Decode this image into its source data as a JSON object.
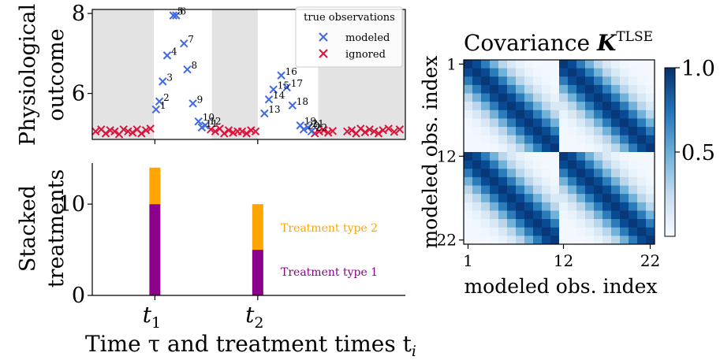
{
  "chart_data": [
    {
      "type": "scatter",
      "ylabel_line1": "Physiological",
      "ylabel_line2": "outcome",
      "ylim": [
        4.85,
        8.1
      ],
      "yticks": [
        6,
        8
      ],
      "ytick_labels": [
        "6",
        "8"
      ],
      "xlim": [
        0,
        28
      ],
      "shaded_regions": [
        [
          0,
          5.5
        ],
        [
          10.7,
          14.8
        ],
        [
          20.2,
          28
        ]
      ],
      "legend_title": "true observations",
      "legend": [
        {
          "label": "modeled",
          "color": "#4169e1"
        },
        {
          "label": "ignored",
          "color": "#dc143c"
        }
      ],
      "modeled_points": [
        {
          "label": "1",
          "x": 5.7,
          "y": 5.6
        },
        {
          "label": "2",
          "x": 6.0,
          "y": 5.8
        },
        {
          "label": "3",
          "x": 6.3,
          "y": 6.3
        },
        {
          "label": "4",
          "x": 6.7,
          "y": 6.95
        },
        {
          "label": "5",
          "x": 7.25,
          "y": 7.95
        },
        {
          "label": "6",
          "x": 7.5,
          "y": 7.95
        },
        {
          "label": "7",
          "x": 8.2,
          "y": 7.25
        },
        {
          "label": "8",
          "x": 8.5,
          "y": 6.6
        },
        {
          "label": "9",
          "x": 9.0,
          "y": 5.75
        },
        {
          "label": "10",
          "x": 9.5,
          "y": 5.3
        },
        {
          "label": "11",
          "x": 9.8,
          "y": 5.15
        },
        {
          "label": "12",
          "x": 10.1,
          "y": 5.2
        },
        {
          "label": "13",
          "x": 15.4,
          "y": 5.5
        },
        {
          "label": "14",
          "x": 15.8,
          "y": 5.85
        },
        {
          "label": "15",
          "x": 16.2,
          "y": 6.1
        },
        {
          "label": "16",
          "x": 16.9,
          "y": 6.45
        },
        {
          "label": "17",
          "x": 17.4,
          "y": 6.15
        },
        {
          "label": "18",
          "x": 17.9,
          "y": 5.7
        },
        {
          "label": "19",
          "x": 18.6,
          "y": 5.2
        },
        {
          "label": "20",
          "x": 18.9,
          "y": 5.1
        },
        {
          "label": "21",
          "x": 19.3,
          "y": 5.15
        },
        {
          "label": "22",
          "x": 19.6,
          "y": 5.05
        }
      ],
      "ignored_points_x": [
        0.3,
        0.8,
        1.2,
        1.6,
        2.0,
        2.4,
        2.8,
        3.2,
        3.6,
        4.0,
        4.4,
        4.8,
        5.2,
        10.6,
        11.0,
        11.4,
        11.8,
        12.2,
        12.6,
        13.0,
        13.4,
        13.8,
        14.2,
        14.6,
        19.9,
        20.3,
        20.7,
        21.1,
        21.5,
        22.8,
        23.2,
        23.6,
        24.0,
        24.4,
        24.8,
        25.2,
        25.6,
        26.0,
        26.5,
        27.0,
        27.5
      ],
      "ignored_points_y": [
        5.05,
        5.1,
        5.0,
        5.08,
        5.05,
        4.98,
        5.1,
        5.05,
        5.02,
        5.1,
        5.0,
        5.08,
        5.12,
        5.1,
        5.05,
        5.12,
        5.0,
        5.08,
        5.02,
        5.05,
        5.05,
        5.0,
        5.08,
        5.05,
        5.0,
        5.05,
        5.08,
        5.02,
        5.06,
        5.05,
        5.08,
        5.0,
        5.12,
        5.03,
        5.1,
        5.05,
        5.0,
        5.08,
        5.12,
        5.04,
        5.1
      ]
    },
    {
      "type": "bar",
      "stacked": true,
      "ylabel_line1": "Stacked",
      "ylabel_line2": "treatments",
      "xlabel": "Time τ and treatment times t",
      "xlabel_sub": "i",
      "ylim": [
        0,
        14.5
      ],
      "xlim": [
        0,
        28
      ],
      "yticks": [
        0,
        10
      ],
      "ytick_labels": [
        "0",
        "10"
      ],
      "categories": [
        "t1",
        "t2"
      ],
      "category_main": [
        "t",
        "t"
      ],
      "category_sub": [
        "1",
        "2"
      ],
      "x_positions": [
        5.6,
        14.8
      ],
      "series": [
        {
          "name": "Treatment type 1",
          "color": "#8b008b",
          "values": [
            10,
            5
          ]
        },
        {
          "name": "Treatment type 2",
          "color": "#ffa500",
          "values": [
            4,
            5
          ]
        }
      ]
    },
    {
      "type": "heatmap",
      "title": "Covariance ",
      "title_symbol": "K",
      "title_superscript": "TLSE",
      "xlabel": "modeled obs. index",
      "ylabel": "modeled obs. index",
      "n": 22,
      "tick_labels": [
        "1",
        "12",
        "22"
      ],
      "tick_indices": [
        0,
        11,
        21
      ],
      "colorbar_ticks": [
        0.5,
        1.0
      ],
      "colorbar_tick_labels": [
        "0.5",
        "1.0"
      ],
      "length_scale": 2.5,
      "colormap_low": "#f7fbff",
      "colormap_high": "#08306b"
    }
  ]
}
